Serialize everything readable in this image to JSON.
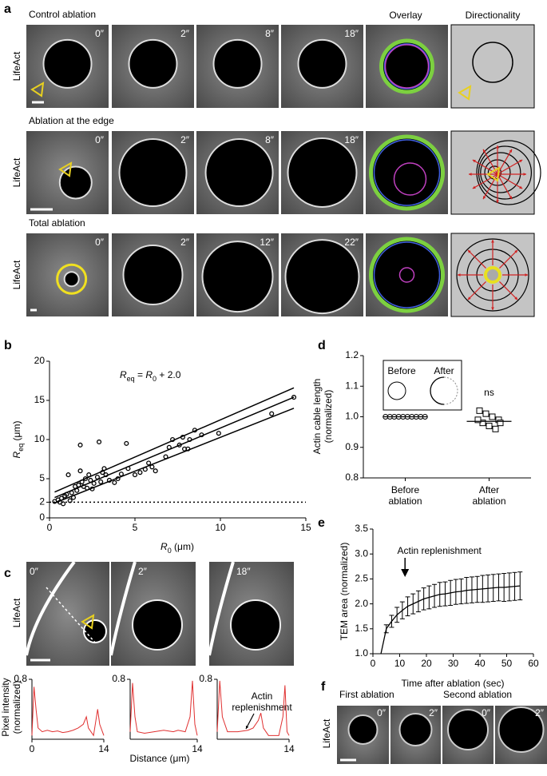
{
  "panel_a": {
    "label": "a",
    "header_overlay": "Overlay",
    "header_directionality": "Directionality",
    "rows": [
      {
        "title": "Control ablation",
        "side": "LifeAct",
        "times": [
          "0″",
          "2″",
          "8″",
          "18″"
        ]
      },
      {
        "title": "Ablation at the edge",
        "side": "LifeAct",
        "times": [
          "0″",
          "2″",
          "8″",
          "18″"
        ]
      },
      {
        "title": "Total ablation",
        "side": "LifeAct",
        "times": [
          "0″",
          "2″",
          "12″",
          "22″"
        ]
      }
    ]
  },
  "panel_c": {
    "label": "c",
    "side": "LifeAct",
    "times": [
      "0″",
      "2″",
      "18″"
    ],
    "ylabel": [
      "Pixel intensity",
      "(normalized)"
    ],
    "xlabel": "Distance (μm)",
    "annotation": [
      "Actin",
      "replenishment"
    ]
  },
  "panel_f": {
    "label": "f",
    "side": "LifeAct",
    "titles": [
      "First ablation",
      "Second ablation"
    ],
    "times": [
      "0″",
      "2″",
      "0″",
      "2″"
    ]
  },
  "chart_data": [
    {
      "panel": "b",
      "type": "scatter",
      "color": "#000000",
      "annotation": [
        {
          "text": "R",
          "italic": true
        },
        {
          "text": "eq",
          "sub": true
        },
        {
          "text": " = "
        },
        {
          "text": "R",
          "italic": true
        },
        {
          "text": "0",
          "sub": true
        },
        {
          "text": " + 2.0"
        }
      ],
      "xlabel": [
        {
          "text": "R",
          "italic": true
        },
        {
          "text": "0",
          "sub": true
        },
        {
          "text": " (μm)"
        }
      ],
      "ylabel": [
        {
          "text": "R",
          "italic": true
        },
        {
          "text": "eq",
          "sub": true
        },
        {
          "text": " (μm)"
        }
      ],
      "xlim": [
        0,
        15
      ],
      "ylim": [
        0,
        20
      ],
      "xticks": [
        0,
        5,
        10,
        15
      ],
      "yticks": [
        0,
        2,
        5,
        10,
        15,
        20
      ],
      "reference_line": 2,
      "x": [
        0.3,
        0.5,
        0.6,
        0.7,
        0.8,
        0.9,
        1.0,
        1.1,
        1.2,
        1.3,
        1.4,
        1.5,
        1.6,
        1.7,
        1.8,
        1.8,
        1.9,
        2.0,
        2.1,
        2.2,
        2.3,
        2.4,
        2.5,
        2.6,
        2.8,
        2.9,
        3.0,
        3.1,
        3.2,
        3.3,
        3.5,
        3.8,
        4.0,
        4.2,
        4.5,
        4.6,
        5.0,
        5.3,
        5.6,
        5.8,
        6.0,
        6.2,
        6.8,
        7.0,
        7.2,
        7.6,
        7.8,
        7.9,
        8.1,
        8.2,
        8.5,
        8.9,
        9.9,
        13.0,
        14.3
      ],
      "values": [
        2.1,
        2.3,
        2.0,
        2.5,
        1.8,
        2.8,
        3.0,
        5.5,
        2.2,
        3.2,
        2.6,
        4.0,
        3.5,
        4.2,
        9.3,
        6.0,
        4.6,
        4.0,
        5.0,
        3.8,
        5.5,
        4.8,
        3.7,
        4.4,
        5.2,
        9.7,
        4.6,
        5.8,
        6.3,
        5.5,
        4.8,
        4.5,
        5.0,
        5.6,
        9.5,
        6.3,
        5.5,
        5.8,
        6.2,
        7.0,
        6.5,
        6.0,
        7.8,
        9.0,
        10.0,
        9.3,
        10.3,
        8.8,
        8.8,
        10.0,
        11.2,
        10.6,
        10.8,
        13.3,
        15.4
      ],
      "fit_lines": [
        {
          "x": [
            0.3,
            14.3
          ],
          "values": [
            3.3,
            16.6
          ]
        },
        {
          "x": [
            0.3,
            14.3
          ],
          "values": [
            2.6,
            15.4
          ]
        },
        {
          "x": [
            0.3,
            14.3
          ],
          "values": [
            1.9,
            14.0
          ]
        }
      ]
    },
    {
      "panel": "d",
      "type": "strip",
      "color": "#000000",
      "categories": [
        "Before ablation",
        "After ablation"
      ],
      "values": [
        [
          1,
          1,
          1,
          1,
          1,
          1,
          1,
          1,
          1,
          1
        ],
        [
          1.02,
          1.01,
          1.0,
          0.99,
          0.98,
          0.97,
          0.96,
          0.99,
          0.98
        ]
      ],
      "means": [
        1.0,
        0.985
      ],
      "markers": [
        "circle",
        "square"
      ],
      "ylim": [
        0.8,
        1.2
      ],
      "yticks": [
        0.8,
        0.9,
        {
          "value": 1,
          "label": "1.0"
        },
        1.1,
        1.2
      ],
      "ylabel": [
        "Actin cable length",
        "(normalized)"
      ],
      "annotation": "ns",
      "inset_labels": [
        "Before",
        "After"
      ]
    },
    {
      "panel": "e",
      "type": "line_error",
      "color": "#000000",
      "xlim": [
        0,
        60
      ],
      "ylim": [
        1,
        3.5
      ],
      "xticks": [
        0,
        10,
        20,
        30,
        40,
        50,
        60
      ],
      "yticks": [
        {
          "value": 1,
          "label": "1.0"
        },
        1.5,
        {
          "value": 2,
          "label": "2.0"
        },
        2.5,
        {
          "value": 3,
          "label": "3.0"
        },
        3.5
      ],
      "xlabel": "Time after ablation (sec)",
      "ylabel": "TEM area (normalized)",
      "annotation": "Actin replenishment",
      "annotation_x": 12,
      "x": [
        3,
        5,
        7,
        9,
        11,
        13,
        15,
        17,
        19,
        21,
        23,
        25,
        27,
        29,
        31,
        33,
        35,
        37,
        39,
        41,
        43,
        45,
        47,
        49,
        51,
        53,
        55
      ],
      "values": [
        1.0,
        1.5,
        1.65,
        1.78,
        1.87,
        1.95,
        2.0,
        2.05,
        2.1,
        2.13,
        2.16,
        2.19,
        2.2,
        2.22,
        2.24,
        2.25,
        2.27,
        2.28,
        2.29,
        2.3,
        2.31,
        2.32,
        2.33,
        2.33,
        2.34,
        2.35,
        2.36
      ],
      "errors": [
        0,
        0.08,
        0.12,
        0.15,
        0.17,
        0.19,
        0.2,
        0.21,
        0.22,
        0.23,
        0.23,
        0.24,
        0.24,
        0.25,
        0.25,
        0.25,
        0.26,
        0.26,
        0.26,
        0.27,
        0.27,
        0.27,
        0.27,
        0.28,
        0.28,
        0.28,
        0.28
      ]
    },
    {
      "type": "line",
      "color": "#e03030",
      "xlim": [
        0,
        14
      ],
      "ylim": [
        0,
        0.8
      ],
      "xticks": [
        0,
        14
      ],
      "yticks": [
        0.8
      ],
      "x": [
        0,
        0.4,
        0.8,
        1.2,
        2,
        3,
        4,
        5,
        6,
        7,
        8,
        9,
        10,
        10.6,
        11,
        12,
        12.8,
        13.2,
        14
      ],
      "values": [
        0.05,
        0.7,
        0.4,
        0.15,
        0.1,
        0.12,
        0.1,
        0.11,
        0.09,
        0.1,
        0.12,
        0.15,
        0.2,
        0.3,
        0.15,
        0.05,
        0.4,
        0.2,
        0.05
      ]
    },
    {
      "type": "line",
      "color": "#e03030",
      "xlim": [
        0,
        14
      ],
      "ylim": [
        0,
        0.8
      ],
      "xticks": [
        14
      ],
      "yticks": [
        0.8
      ],
      "x": [
        0,
        0.5,
        1,
        1.5,
        3,
        5,
        7,
        9,
        10,
        11.5,
        12.5,
        13,
        13.5,
        14
      ],
      "values": [
        0.1,
        0.75,
        0.3,
        0.1,
        0.08,
        0.1,
        0.12,
        0.1,
        0.12,
        0.1,
        0.3,
        0.78,
        0.2,
        0.05
      ]
    },
    {
      "type": "line",
      "color": "#e03030",
      "xlim": [
        0,
        14
      ],
      "ylim": [
        0,
        0.8
      ],
      "xticks": [
        14
      ],
      "yticks": [
        0.8
      ],
      "x": [
        0,
        0.5,
        1,
        2,
        4,
        6,
        7,
        8,
        8.5,
        9,
        10,
        12,
        12.8,
        13.2,
        13.6,
        14
      ],
      "values": [
        0.1,
        0.78,
        0.3,
        0.1,
        0.1,
        0.12,
        0.15,
        0.25,
        0.35,
        0.15,
        0.05,
        0.05,
        0.3,
        0.72,
        0.1,
        0.05
      ]
    }
  ]
}
